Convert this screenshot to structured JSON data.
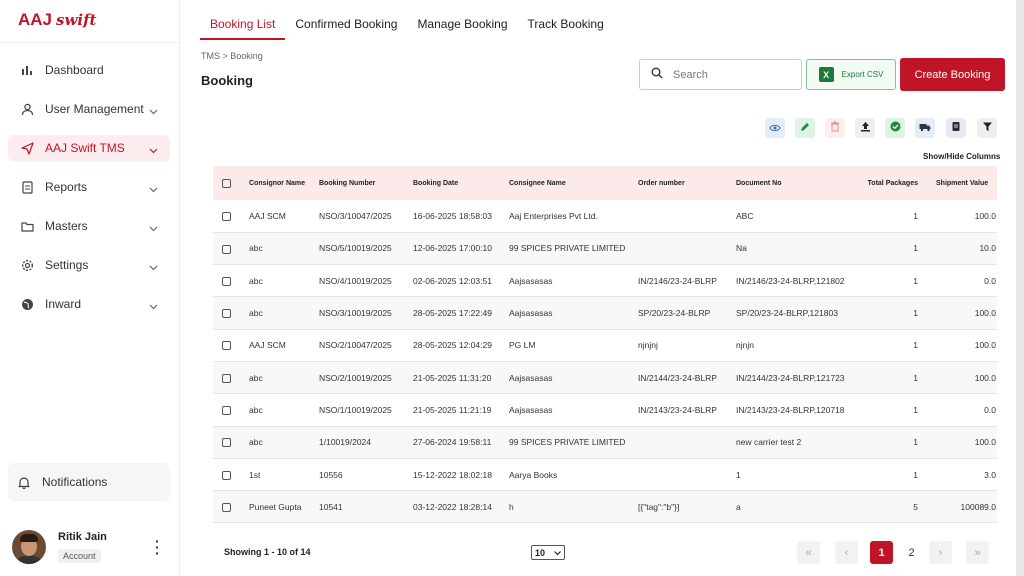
{
  "brand": {
    "name": "AAJ",
    "suffix": "swift"
  },
  "sidebar": {
    "items": [
      {
        "label": "Dashboard",
        "icon": "bar-chart-icon"
      },
      {
        "label": "User Management",
        "icon": "user-icon"
      },
      {
        "label": "AAJ Swift TMS",
        "icon": "send-icon"
      },
      {
        "label": "Reports",
        "icon": "document-icon"
      },
      {
        "label": "Masters",
        "icon": "folder-icon"
      },
      {
        "label": "Settings",
        "icon": "gear-icon"
      },
      {
        "label": "Inward",
        "icon": "globe-icon"
      }
    ],
    "notifications": "Notifications",
    "user": {
      "name": "Ritik Jain",
      "role": "Account"
    }
  },
  "tabs": [
    "Booking List",
    "Confirmed Booking",
    "Manage Booking",
    "Track Booking"
  ],
  "breadcrumb": "TMS > Booking",
  "page_title": "Booking",
  "search": {
    "placeholder": "Search"
  },
  "export_label": "Export CSV",
  "create_label": "Create Booking",
  "show_hide": "Show/Hide Columns",
  "colors": {
    "accent": "#c01526",
    "header_bg": "#fce9ea",
    "export_green": "#1e7a3a"
  },
  "table": {
    "headers": [
      "Consignor Name",
      "Booking Number",
      "Booking Date",
      "Consignee Name",
      "Order number",
      "Document No",
      "Total Packages",
      "Shipment Value"
    ],
    "rows": [
      [
        "AAJ SCM",
        "NSO/3/10047/2025",
        "16-06-2025 18:58:03",
        "Aaj Enterprises Pvt Ltd.",
        "",
        "ABC",
        "1",
        "100.0"
      ],
      [
        "abc",
        "NSO/5/10019/2025",
        "12-06-2025 17:00:10",
        "99 SPICES PRIVATE LIMITED",
        "",
        "Na",
        "1",
        "10.0"
      ],
      [
        "abc",
        "NSO/4/10019/2025",
        "02-06-2025 12:03:51",
        "Aajsasasas",
        "IN/2146/23-24-BLRP",
        "IN/2146/23-24-BLRP,121802",
        "1",
        "0.0"
      ],
      [
        "abc",
        "NSO/3/10019/2025",
        "28-05-2025 17:22:49",
        "Aajsasasas",
        "SP/20/23-24-BLRP",
        "SP/20/23-24-BLRP,121803",
        "1",
        "100.0"
      ],
      [
        "AAJ SCM",
        "NSO/2/10047/2025",
        "28-05-2025 12:04:29",
        "PG LM",
        "njnjnj",
        "njnjn",
        "1",
        "100.0"
      ],
      [
        "abc",
        "NSO/2/10019/2025",
        "21-05-2025 11:31:20",
        "Aajsasasas",
        "IN/2144/23-24-BLRP",
        "IN/2144/23-24-BLRP,121723",
        "1",
        "100.0"
      ],
      [
        "abc",
        "NSO/1/10019/2025",
        "21-05-2025 11:21:19",
        "Aajsasasas",
        "IN/2143/23-24-BLRP",
        "IN/2143/23-24-BLRP,120718",
        "1",
        "0.0"
      ],
      [
        "abc",
        "1/10019/2024",
        "27-06-2024 19:58:11",
        "99 SPICES PRIVATE LIMITED",
        "",
        "new carrier test 2",
        "1",
        "100.0"
      ],
      [
        "1st",
        "10556",
        "15-12-2022 18:02:18",
        "Aarya Books",
        "",
        "1",
        "1",
        "3.0"
      ],
      [
        "Puneet Gupta",
        "10541",
        "03-12-2022 18:28:14",
        "h",
        "[{\"tag\":\"b\"}]",
        "a",
        "5",
        "100089.0"
      ]
    ]
  },
  "footer": {
    "showing": "Showing 1 - 10 of 14",
    "page_size": "10",
    "pages": [
      "1",
      "2"
    ],
    "current_page": "1"
  }
}
